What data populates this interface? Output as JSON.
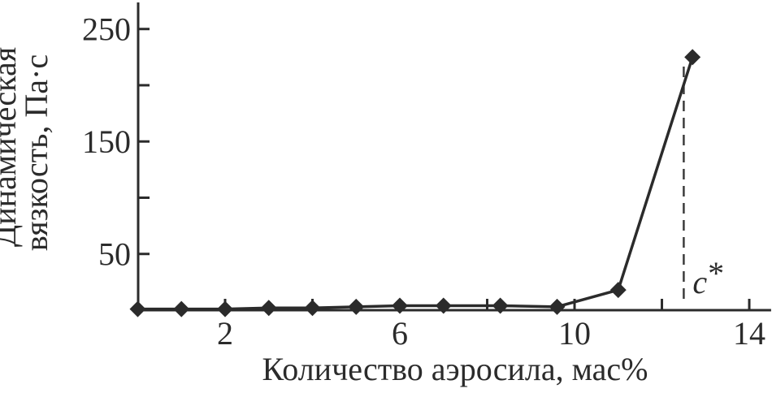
{
  "page": {
    "background": "#ffffff",
    "ink_color": "#2b2b2b"
  },
  "chart_data": {
    "type": "line",
    "title": "",
    "grid": false,
    "legend": false,
    "x_axis": {
      "title": "Количество аэросила, мас%",
      "range": [
        0,
        14.5
      ],
      "ticks": [
        2,
        4,
        6,
        8,
        10,
        12,
        14
      ],
      "tick_labels": [
        {
          "value": 2,
          "text": "2"
        },
        {
          "value": 6,
          "text": "6"
        },
        {
          "value": 10,
          "text": "10"
        },
        {
          "value": 14,
          "text": "14"
        }
      ]
    },
    "y_axis": {
      "title": "Динамическая вязкость, Па·с",
      "title_lines": [
        "Динамическая",
        "вязкость, Па·с"
      ],
      "range": [
        0,
        275
      ],
      "ticks": [
        50,
        100,
        150,
        200,
        250
      ],
      "tick_labels": [
        {
          "value": 50,
          "text": "50"
        },
        {
          "value": 150,
          "text": "150"
        },
        {
          "value": 250,
          "text": "250"
        }
      ]
    },
    "series": [
      {
        "name": "Динамическая вязкость",
        "marker": "diamond",
        "color": "#2b2b2b",
        "points": [
          {
            "x": 0,
            "y": 1
          },
          {
            "x": 1,
            "y": 1
          },
          {
            "x": 2,
            "y": 1
          },
          {
            "x": 3,
            "y": 2
          },
          {
            "x": 4,
            "y": 2
          },
          {
            "x": 5,
            "y": 3
          },
          {
            "x": 6,
            "y": 4
          },
          {
            "x": 7,
            "y": 4
          },
          {
            "x": 8.3,
            "y": 4
          },
          {
            "x": 9.6,
            "y": 3
          },
          {
            "x": 11,
            "y": 18
          },
          {
            "x": 12.7,
            "y": 225
          }
        ]
      }
    ],
    "annotations": [
      {
        "type": "vertical-dashed-line",
        "x": 12.5,
        "label": "c*",
        "label_main": "c",
        "label_sup": "*"
      }
    ]
  }
}
